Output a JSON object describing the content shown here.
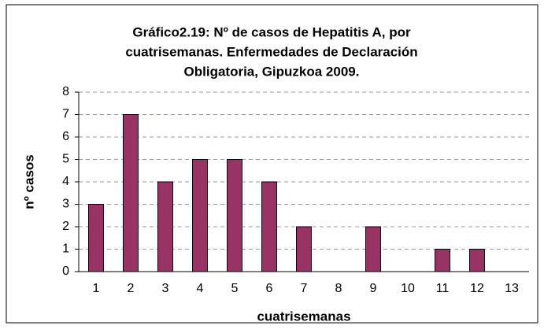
{
  "chart_data": {
    "type": "bar",
    "title": [
      "Gráfico2.19:  Nº de casos de Hepatitis A, por",
      "cuatrisemanas. Enfermedades de Declaración",
      "Obligatoria, Gipuzkoa 2009."
    ],
    "x_label": "cuatrisemanas",
    "y_label": "nº casos",
    "categories": [
      "1",
      "2",
      "3",
      "4",
      "5",
      "6",
      "7",
      "8",
      "9",
      "10",
      "11",
      "12",
      "13"
    ],
    "values": [
      3,
      7,
      4,
      5,
      5,
      4,
      2,
      0,
      2,
      0,
      1,
      1,
      0
    ],
    "color": "#993366",
    "ylim": [
      0,
      8
    ],
    "yticks": [
      0,
      1,
      2,
      3,
      4,
      5,
      6,
      7,
      8
    ],
    "grid": true
  }
}
